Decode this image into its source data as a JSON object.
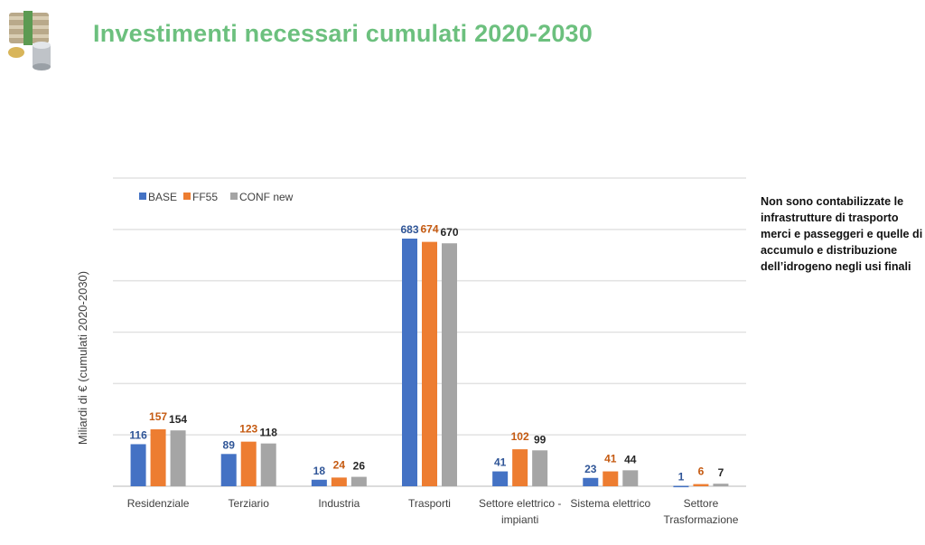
{
  "header": {
    "title": "Investimenti necessari cumulati 2020-2030",
    "logo_icon": "money-stack-coins-icon"
  },
  "note": "Non sono contabilizzate le infrastrutture di trasporto merci e passeggeri e quelle di accumulo e distribuzione dell’idrogeno negli usi finali",
  "chart_data": {
    "type": "bar",
    "title": "Investimenti necessari cumulati 2020-2030",
    "xlabel": "",
    "ylabel": "Miliardi di € (cumulati 2020-2030)",
    "categories": [
      "Residenziale",
      "Terziario",
      "Industria",
      "Trasporti",
      "Settore elettrico - impianti",
      "Sistema elettrico",
      "Settore Trasformazione"
    ],
    "category_lines": [
      [
        "Residenziale"
      ],
      [
        "Terziario"
      ],
      [
        "Industria"
      ],
      [
        "Trasporti"
      ],
      [
        "Settore elettrico -",
        "impianti"
      ],
      [
        "Sistema elettrico"
      ],
      [
        "Settore",
        "Trasformazione"
      ]
    ],
    "series": [
      {
        "name": "BASE",
        "color": "#4472c4",
        "label_color": "#2f5597",
        "values": [
          116,
          89,
          18,
          683,
          41,
          23,
          1
        ]
      },
      {
        "name": "FF55",
        "color": "#ed7d31",
        "label_color": "#c55a11",
        "values": [
          157,
          123,
          24,
          674,
          102,
          41,
          6
        ]
      },
      {
        "name": "CONF new",
        "color": "#a5a5a5",
        "label_color": "#262626",
        "values": [
          154,
          118,
          26,
          670,
          99,
          44,
          7
        ]
      }
    ],
    "ylim": [
      0,
      850
    ],
    "grid": true,
    "gridlines": 6,
    "legend": "top-left",
    "data_labels": true
  }
}
